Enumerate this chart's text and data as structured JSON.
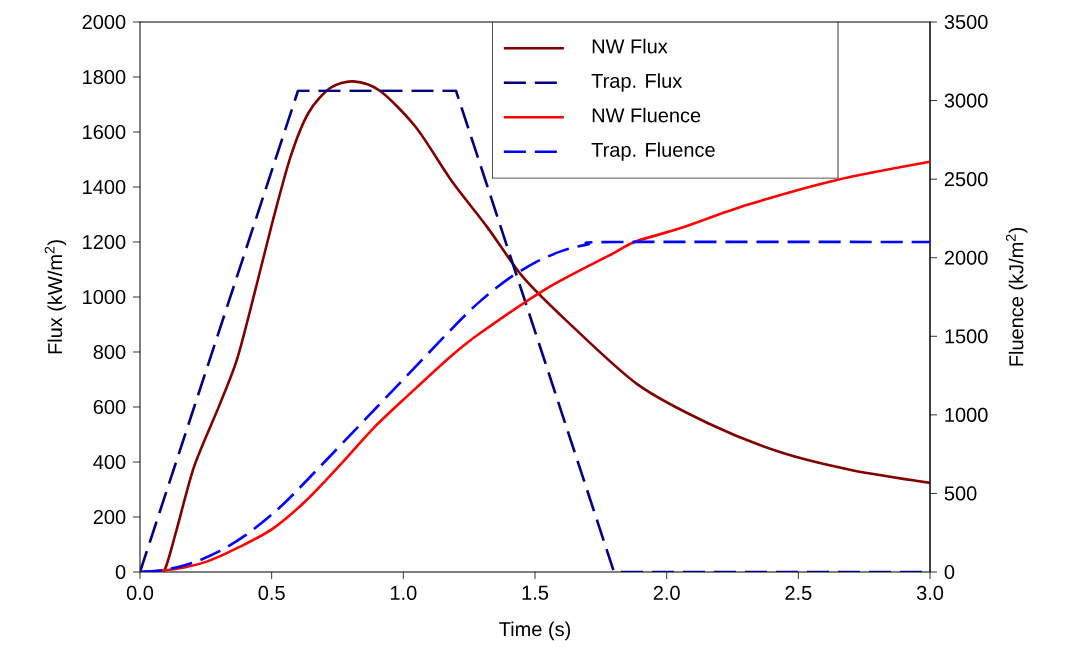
{
  "chart_data": {
    "type": "line",
    "xlabel": "Time (s)",
    "ylabel": "Flux (kW/m$^{2}$)",
    "y2label": "Fluence (kJ/m$^{2}$)",
    "xlim": [
      0,
      3
    ],
    "xticks": [
      {
        "value": 0,
        "label": "0.0"
      },
      0.5,
      {
        "value": 1,
        "label": "1.0"
      },
      1.5,
      {
        "value": 2,
        "label": "2.0"
      },
      2.5,
      {
        "value": 3,
        "label": "3.0"
      }
    ],
    "ylim": [
      0,
      2000
    ],
    "yticks": [
      0,
      200,
      400,
      600,
      800,
      1000,
      1200,
      1400,
      1600,
      1800,
      2000
    ],
    "y2lim": [
      0,
      3500
    ],
    "y2ticks": [
      0,
      500,
      1000,
      1500,
      2000,
      2500,
      3000,
      3500
    ],
    "legend": "top right",
    "grid": false,
    "marker": "none",
    "series": [
      {
        "name": "NW Flux",
        "color": "#800000",
        "line_style": "solid",
        "x": [
          0,
          0.05,
          0.093,
          0.138,
          0.206,
          0.301,
          0.369,
          0.437,
          0.505,
          0.573,
          0.64,
          0.722,
          0.81,
          0.912,
          1.047,
          1.183,
          1.318,
          1.454,
          1.617,
          1.888,
          2.159,
          2.43,
          2.7,
          3.0
        ],
        "values": [
          0,
          0,
          7,
          150,
          385,
          605,
          775,
          1022,
          1280,
          1514,
          1670,
          1760,
          1784,
          1749,
          1618,
          1423,
          1255,
          1073,
          916,
          683,
          540,
          436,
          371,
          324
        ]
      },
      {
        "name": "Trap. Flux",
        "color": "#000080",
        "line_style": "dashed",
        "x": [
          0,
          0.6,
          1.2,
          1.8,
          3.0
        ],
        "values": [
          0,
          1750,
          1750,
          0,
          0
        ]
      },
      {
        "name": "NW Fluence",
        "color": "#ff0000",
        "line_style": "solid",
        "axis": "y2",
        "x": [
          0,
          0.127,
          0.253,
          0.38,
          0.506,
          0.633,
          0.76,
          0.886,
          1.013,
          1.183,
          1.291,
          1.545,
          1.797,
          1.88,
          2.051,
          2.304,
          2.646,
          3.0
        ],
        "values": [
          0,
          17,
          66,
          161,
          278,
          458,
          681,
          914,
          1116,
          1376,
          1519,
          1805,
          2028,
          2102,
          2187,
          2335,
          2495,
          2611
        ]
      },
      {
        "name": "Trap. Fluence",
        "color": "#0000ff",
        "line_style": "dashed",
        "axis": "y2",
        "x": [
          0,
          0.1,
          0.2,
          0.3,
          0.4,
          0.5,
          0.6,
          0.9,
          1.2,
          1.3,
          1.4,
          1.5,
          1.6,
          1.7,
          1.8,
          3.0
        ],
        "values": [
          0,
          15,
          58,
          131,
          233,
          365,
          525,
          1050,
          1575,
          1735,
          1867,
          1969,
          2042,
          2085,
          2100,
          2100
        ]
      }
    ]
  }
}
